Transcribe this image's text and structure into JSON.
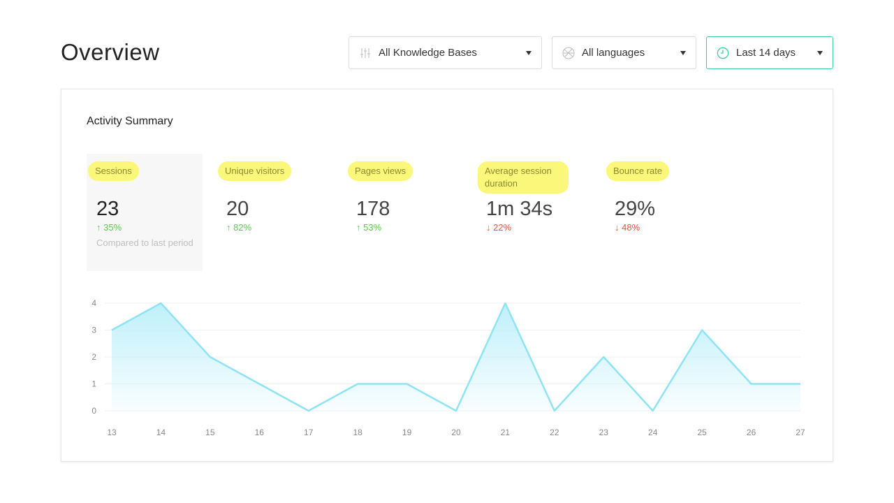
{
  "header": {
    "title": "Overview",
    "filters": [
      {
        "label": "All Knowledge Bases",
        "icon": "sliders-icon"
      },
      {
        "label": "All languages",
        "icon": "globe-icon"
      },
      {
        "label": "Last 14 days",
        "icon": "clock-icon",
        "accent": "#3ecf9a"
      }
    ]
  },
  "card": {
    "title": "Activity Summary",
    "metrics": [
      {
        "label": "Sessions",
        "value": "23",
        "change": "35%",
        "direction": "up"
      },
      {
        "label": "Unique visitors",
        "value": "20",
        "change": "82%",
        "direction": "up"
      },
      {
        "label": "Pages views",
        "value": "178",
        "change": "53%",
        "direction": "up"
      },
      {
        "label": "Average session duration",
        "value": "1m 34s",
        "change": "22%",
        "direction": "down"
      },
      {
        "label": "Bounce rate",
        "value": "29%",
        "change": "48%",
        "direction": "down"
      }
    ],
    "compare_note": "Compared to last period"
  },
  "chart_data": {
    "type": "area",
    "x": [
      "13",
      "14",
      "15",
      "16",
      "17",
      "18",
      "19",
      "20",
      "21",
      "22",
      "23",
      "24",
      "25",
      "26",
      "27"
    ],
    "values": [
      3,
      4,
      2,
      1,
      0,
      1,
      1,
      0,
      4,
      0,
      2,
      0,
      3,
      1,
      1
    ],
    "yticks": [
      "0",
      "1",
      "2",
      "3",
      "4"
    ],
    "ylim": [
      0,
      4
    ],
    "grid": true,
    "color": "#8fe3f5"
  }
}
